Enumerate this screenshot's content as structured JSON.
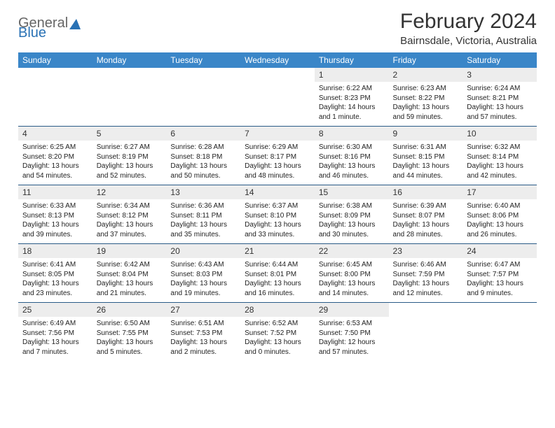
{
  "logo": {
    "text1": "General",
    "text2": "Blue",
    "shape_color": "#2a72b5"
  },
  "title": "February 2024",
  "location": "Bairnsdale, Victoria, Australia",
  "header_color": "#3a86c8",
  "sep_color": "#2a5b87",
  "daynum_bg": "#ededed",
  "dow": [
    "Sunday",
    "Monday",
    "Tuesday",
    "Wednesday",
    "Thursday",
    "Friday",
    "Saturday"
  ],
  "weeks": [
    {
      "nums": [
        "",
        "",
        "",
        "",
        "1",
        "2",
        "3"
      ],
      "details": [
        "",
        "",
        "",
        "",
        "Sunrise: 6:22 AM\nSunset: 8:23 PM\nDaylight: 14 hours and 1 minute.",
        "Sunrise: 6:23 AM\nSunset: 8:22 PM\nDaylight: 13 hours and 59 minutes.",
        "Sunrise: 6:24 AM\nSunset: 8:21 PM\nDaylight: 13 hours and 57 minutes."
      ]
    },
    {
      "nums": [
        "4",
        "5",
        "6",
        "7",
        "8",
        "9",
        "10"
      ],
      "details": [
        "Sunrise: 6:25 AM\nSunset: 8:20 PM\nDaylight: 13 hours and 54 minutes.",
        "Sunrise: 6:27 AM\nSunset: 8:19 PM\nDaylight: 13 hours and 52 minutes.",
        "Sunrise: 6:28 AM\nSunset: 8:18 PM\nDaylight: 13 hours and 50 minutes.",
        "Sunrise: 6:29 AM\nSunset: 8:17 PM\nDaylight: 13 hours and 48 minutes.",
        "Sunrise: 6:30 AM\nSunset: 8:16 PM\nDaylight: 13 hours and 46 minutes.",
        "Sunrise: 6:31 AM\nSunset: 8:15 PM\nDaylight: 13 hours and 44 minutes.",
        "Sunrise: 6:32 AM\nSunset: 8:14 PM\nDaylight: 13 hours and 42 minutes."
      ]
    },
    {
      "nums": [
        "11",
        "12",
        "13",
        "14",
        "15",
        "16",
        "17"
      ],
      "details": [
        "Sunrise: 6:33 AM\nSunset: 8:13 PM\nDaylight: 13 hours and 39 minutes.",
        "Sunrise: 6:34 AM\nSunset: 8:12 PM\nDaylight: 13 hours and 37 minutes.",
        "Sunrise: 6:36 AM\nSunset: 8:11 PM\nDaylight: 13 hours and 35 minutes.",
        "Sunrise: 6:37 AM\nSunset: 8:10 PM\nDaylight: 13 hours and 33 minutes.",
        "Sunrise: 6:38 AM\nSunset: 8:09 PM\nDaylight: 13 hours and 30 minutes.",
        "Sunrise: 6:39 AM\nSunset: 8:07 PM\nDaylight: 13 hours and 28 minutes.",
        "Sunrise: 6:40 AM\nSunset: 8:06 PM\nDaylight: 13 hours and 26 minutes."
      ]
    },
    {
      "nums": [
        "18",
        "19",
        "20",
        "21",
        "22",
        "23",
        "24"
      ],
      "details": [
        "Sunrise: 6:41 AM\nSunset: 8:05 PM\nDaylight: 13 hours and 23 minutes.",
        "Sunrise: 6:42 AM\nSunset: 8:04 PM\nDaylight: 13 hours and 21 minutes.",
        "Sunrise: 6:43 AM\nSunset: 8:03 PM\nDaylight: 13 hours and 19 minutes.",
        "Sunrise: 6:44 AM\nSunset: 8:01 PM\nDaylight: 13 hours and 16 minutes.",
        "Sunrise: 6:45 AM\nSunset: 8:00 PM\nDaylight: 13 hours and 14 minutes.",
        "Sunrise: 6:46 AM\nSunset: 7:59 PM\nDaylight: 13 hours and 12 minutes.",
        "Sunrise: 6:47 AM\nSunset: 7:57 PM\nDaylight: 13 hours and 9 minutes."
      ]
    },
    {
      "nums": [
        "25",
        "26",
        "27",
        "28",
        "29",
        "",
        ""
      ],
      "details": [
        "Sunrise: 6:49 AM\nSunset: 7:56 PM\nDaylight: 13 hours and 7 minutes.",
        "Sunrise: 6:50 AM\nSunset: 7:55 PM\nDaylight: 13 hours and 5 minutes.",
        "Sunrise: 6:51 AM\nSunset: 7:53 PM\nDaylight: 13 hours and 2 minutes.",
        "Sunrise: 6:52 AM\nSunset: 7:52 PM\nDaylight: 13 hours and 0 minutes.",
        "Sunrise: 6:53 AM\nSunset: 7:50 PM\nDaylight: 12 hours and 57 minutes.",
        "",
        ""
      ]
    }
  ]
}
